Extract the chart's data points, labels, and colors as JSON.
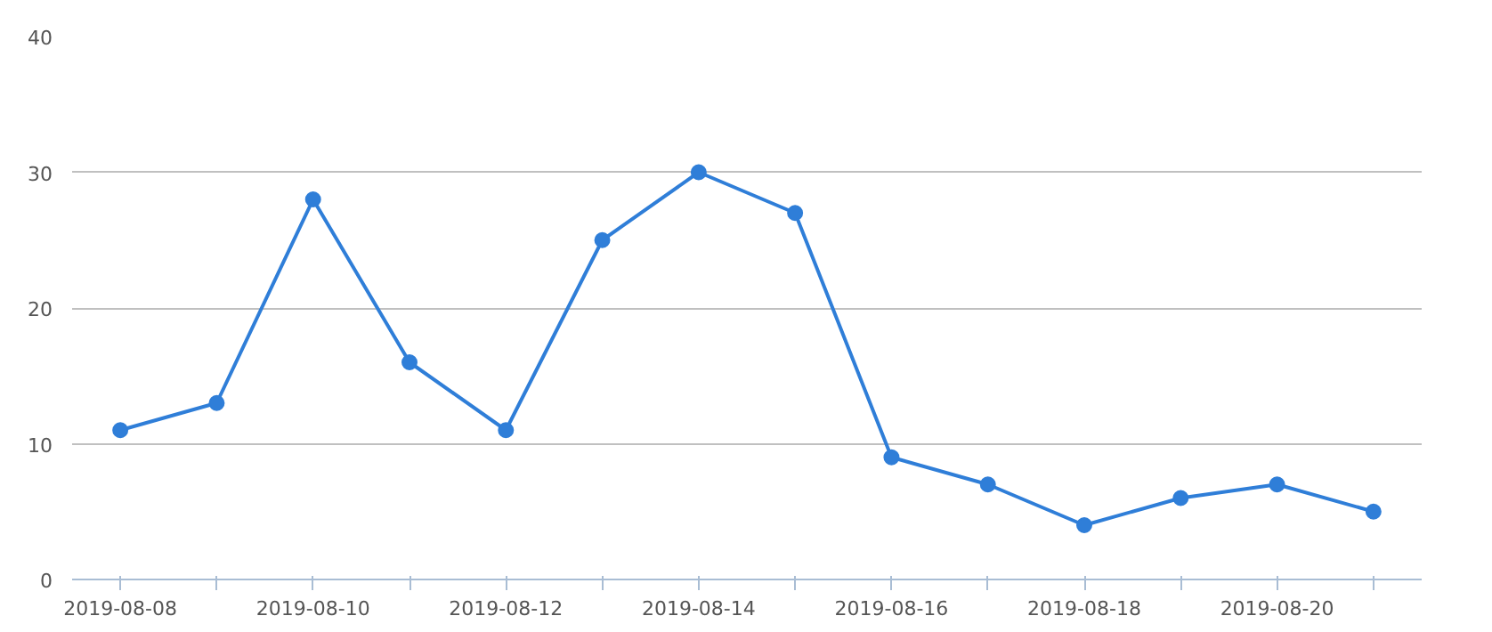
{
  "chart_data": {
    "type": "line",
    "categories": [
      "2019-08-08",
      null,
      "2019-08-10",
      null,
      "2019-08-12",
      null,
      "2019-08-14",
      null,
      "2019-08-16",
      null,
      "2019-08-18",
      null,
      "2019-08-20",
      null
    ],
    "series": [
      {
        "color": "#2f7ed8",
        "values": [
          11,
          13,
          28,
          16,
          11,
          25,
          30,
          27,
          9,
          7,
          4,
          6,
          7,
          5
        ]
      }
    ],
    "ylim": [
      0,
      40
    ],
    "yticks": [
      0,
      10,
      20,
      30,
      40
    ],
    "grid": "y",
    "marker": "circle",
    "line_style": "solid"
  }
}
